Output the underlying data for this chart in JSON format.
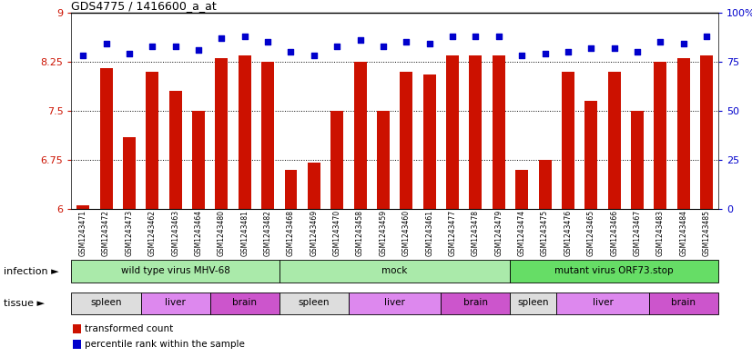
{
  "title": "GDS4775 / 1416600_a_at",
  "samples": [
    "GSM1243471",
    "GSM1243472",
    "GSM1243473",
    "GSM1243462",
    "GSM1243463",
    "GSM1243464",
    "GSM1243480",
    "GSM1243481",
    "GSM1243482",
    "GSM1243468",
    "GSM1243469",
    "GSM1243470",
    "GSM1243458",
    "GSM1243459",
    "GSM1243460",
    "GSM1243461",
    "GSM1243477",
    "GSM1243478",
    "GSM1243479",
    "GSM1243474",
    "GSM1243475",
    "GSM1243476",
    "GSM1243465",
    "GSM1243466",
    "GSM1243467",
    "GSM1243483",
    "GSM1243484",
    "GSM1243485"
  ],
  "bar_values": [
    6.05,
    8.15,
    7.1,
    8.1,
    7.8,
    7.5,
    8.3,
    8.35,
    8.25,
    6.6,
    6.7,
    7.5,
    8.25,
    7.5,
    8.1,
    8.05,
    8.35,
    8.35,
    8.35,
    6.6,
    6.75,
    8.1,
    7.65,
    8.1,
    7.5,
    8.25,
    8.3,
    8.35
  ],
  "dot_values": [
    78,
    84,
    79,
    83,
    83,
    81,
    87,
    88,
    85,
    80,
    78,
    83,
    86,
    83,
    85,
    84,
    88,
    88,
    88,
    78,
    79,
    80,
    82,
    82,
    80,
    85,
    84,
    88
  ],
  "ylim_left": [
    6,
    9
  ],
  "ylim_right": [
    0,
    100
  ],
  "yticks_left": [
    6,
    6.75,
    7.5,
    8.25,
    9
  ],
  "yticks_right": [
    0,
    25,
    50,
    75,
    100
  ],
  "ytick_labels_right": [
    "0",
    "25",
    "50",
    "75",
    "100%"
  ],
  "bar_color": "#cc1100",
  "dot_color": "#0000cc",
  "hlines": [
    6.75,
    7.5,
    8.25
  ],
  "infection_groups": [
    {
      "label": "wild type virus MHV-68",
      "start": 0,
      "end": 9,
      "color": "#aaeaaa"
    },
    {
      "label": "mock",
      "start": 9,
      "end": 19,
      "color": "#aaeaaa"
    },
    {
      "label": "mutant virus ORF73.stop",
      "start": 19,
      "end": 28,
      "color": "#66dd66"
    }
  ],
  "tissue_groups": [
    {
      "label": "spleen",
      "start": 0,
      "end": 3,
      "type": "spleen"
    },
    {
      "label": "liver",
      "start": 3,
      "end": 6,
      "type": "liver"
    },
    {
      "label": "brain",
      "start": 6,
      "end": 9,
      "type": "brain"
    },
    {
      "label": "spleen",
      "start": 9,
      "end": 12,
      "type": "spleen"
    },
    {
      "label": "liver",
      "start": 12,
      "end": 16,
      "type": "liver"
    },
    {
      "label": "brain",
      "start": 16,
      "end": 19,
      "type": "brain"
    },
    {
      "label": "spleen",
      "start": 19,
      "end": 21,
      "type": "spleen"
    },
    {
      "label": "liver",
      "start": 21,
      "end": 25,
      "type": "liver"
    },
    {
      "label": "brain",
      "start": 25,
      "end": 28,
      "type": "brain"
    }
  ],
  "spleen_color": "#dddddd",
  "liver_color": "#dd88ee",
  "brain_color": "#cc55cc",
  "infection_label": "infection ►",
  "tissue_label": "tissue ►",
  "legend_items": [
    {
      "label": "transformed count",
      "color": "#cc1100"
    },
    {
      "label": "percentile rank within the sample",
      "color": "#0000cc"
    }
  ]
}
